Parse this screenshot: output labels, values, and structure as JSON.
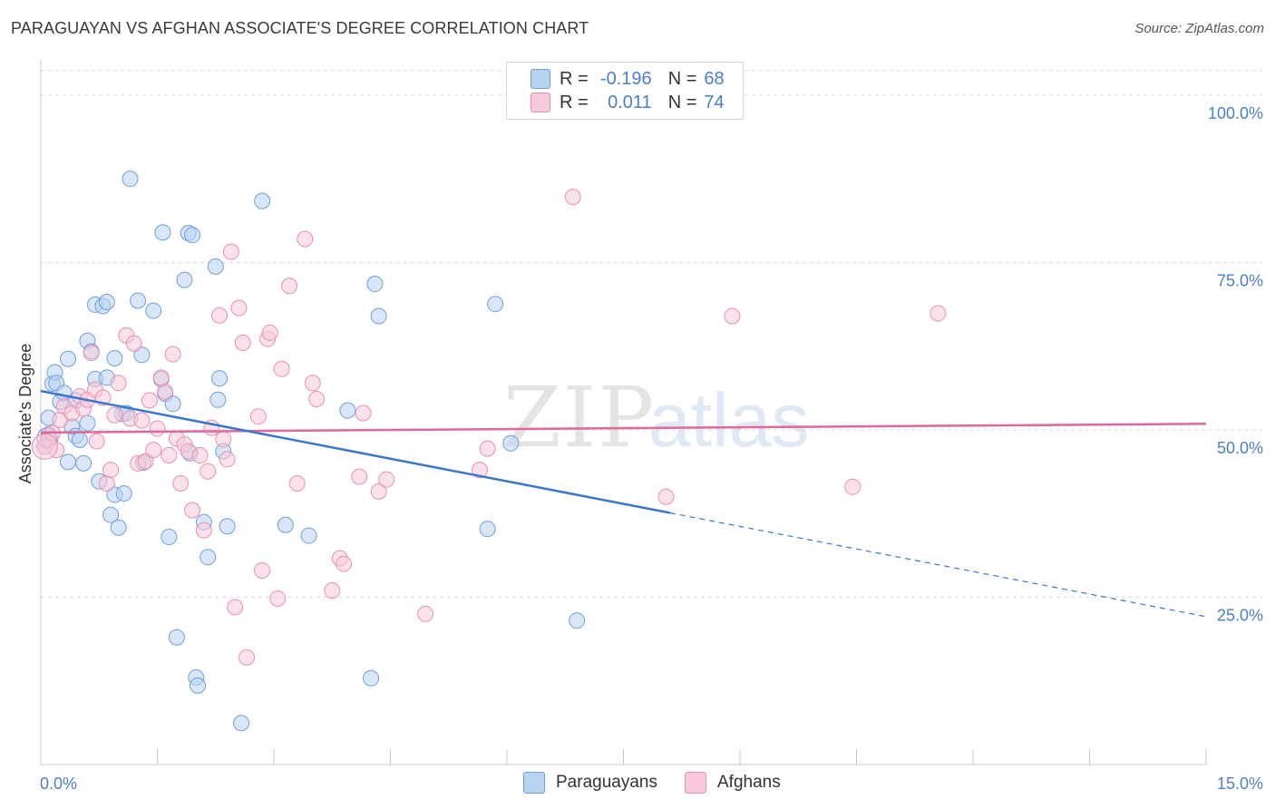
{
  "title": "PARAGUAYAN VS AFGHAN ASSOCIATE'S DEGREE CORRELATION CHART",
  "source": "Source: ZipAtlas.com",
  "watermark": {
    "zip": "ZIP",
    "atlas": "atlas"
  },
  "legend": {
    "rows": [
      {
        "r_label": "R =",
        "r_value": "-0.196",
        "n_label": "N =",
        "n_value": "68",
        "fill": "#b8d2f2",
        "stroke": "#6f9fdc"
      },
      {
        "r_label": "R =",
        "r_value": "0.011",
        "n_label": "N =",
        "n_value": "74",
        "fill": "#f8c9d8",
        "stroke": "#e890ae"
      }
    ]
  },
  "bottom_legend": [
    {
      "label": "Paraguayans",
      "fill": "#b8d2f2",
      "stroke": "#6f9fdc"
    },
    {
      "label": "Afghans",
      "fill": "#f8c9d8",
      "stroke": "#e890ae"
    }
  ],
  "chart_data": {
    "type": "scatter",
    "title": "PARAGUAYAN VS AFGHAN ASSOCIATE'S DEGREE CORRELATION CHART",
    "xlabel": "",
    "ylabel": "Associate's Degree",
    "xlim": [
      0,
      15
    ],
    "ylim": [
      0,
      105
    ],
    "x_tick_labels": [
      {
        "value": 0,
        "label": "0.0%"
      },
      {
        "value": 15,
        "label": "15.0%"
      }
    ],
    "x_minor_ticks": [
      1.5,
      3.0,
      4.5,
      6.0,
      7.5,
      9.0,
      10.5,
      12.0,
      13.5,
      15.0
    ],
    "y_ticks": [
      {
        "value": 100,
        "label": "100.0%"
      },
      {
        "value": 75,
        "label": "75.0%"
      },
      {
        "value": 50,
        "label": "50.0%"
      },
      {
        "value": 25,
        "label": "25.0%"
      }
    ],
    "grid": "horizontal-dashed",
    "legend_position": "top-center",
    "series": [
      {
        "name": "Paraguayans",
        "color": "#6f9fdc",
        "fill": "#b8d2f2",
        "R": -0.196,
        "N": 68,
        "points": [
          [
            0.05,
            47.5
          ],
          [
            0.1,
            49.3
          ],
          [
            0.1,
            51.8
          ],
          [
            0.15,
            56.9
          ],
          [
            0.18,
            58.6
          ],
          [
            0.2,
            57.0
          ],
          [
            0.25,
            54.2
          ],
          [
            0.3,
            55.5
          ],
          [
            0.35,
            60.6
          ],
          [
            0.35,
            45.2
          ],
          [
            0.4,
            50.5
          ],
          [
            0.45,
            49.1
          ],
          [
            0.45,
            54.4
          ],
          [
            0.5,
            48.5
          ],
          [
            0.55,
            45.0
          ],
          [
            0.6,
            51.0
          ],
          [
            0.6,
            63.3
          ],
          [
            0.65,
            61.7
          ],
          [
            0.7,
            68.7
          ],
          [
            0.7,
            57.6
          ],
          [
            0.75,
            42.3
          ],
          [
            0.8,
            68.5
          ],
          [
            0.85,
            69.1
          ],
          [
            0.85,
            57.8
          ],
          [
            0.9,
            37.3
          ],
          [
            0.95,
            40.3
          ],
          [
            0.95,
            60.7
          ],
          [
            1.0,
            35.4
          ],
          [
            1.05,
            52.4
          ],
          [
            1.07,
            40.5
          ],
          [
            1.1,
            52.5
          ],
          [
            1.15,
            87.5
          ],
          [
            1.25,
            69.3
          ],
          [
            1.3,
            61.2
          ],
          [
            1.32,
            45.1
          ],
          [
            1.45,
            67.8
          ],
          [
            1.55,
            57.6
          ],
          [
            1.57,
            79.5
          ],
          [
            1.6,
            55.4
          ],
          [
            1.65,
            34.0
          ],
          [
            1.7,
            53.9
          ],
          [
            1.75,
            19.0
          ],
          [
            1.85,
            72.4
          ],
          [
            1.9,
            79.4
          ],
          [
            1.92,
            46.5
          ],
          [
            1.95,
            79.1
          ],
          [
            2.0,
            13.0
          ],
          [
            2.02,
            11.8
          ],
          [
            2.1,
            36.2
          ],
          [
            2.15,
            31.0
          ],
          [
            2.25,
            74.4
          ],
          [
            2.28,
            54.5
          ],
          [
            2.3,
            57.7
          ],
          [
            2.35,
            46.8
          ],
          [
            2.4,
            35.6
          ],
          [
            2.58,
            6.2
          ],
          [
            2.85,
            84.2
          ],
          [
            3.15,
            35.8
          ],
          [
            3.45,
            34.2
          ],
          [
            3.95,
            52.9
          ],
          [
            4.25,
            12.9
          ],
          [
            4.3,
            71.8
          ],
          [
            4.35,
            67.0
          ],
          [
            5.75,
            35.2
          ],
          [
            5.85,
            68.8
          ],
          [
            6.05,
            48.0
          ],
          [
            6.9,
            21.5
          ],
          [
            0.12,
            48.6
          ]
        ]
      },
      {
        "name": "Afghans",
        "color": "#e890ae",
        "fill": "#f8c9d8",
        "R": 0.011,
        "N": 74,
        "points": [
          [
            0.05,
            47.5
          ],
          [
            0.1,
            48.5
          ],
          [
            0.15,
            49.5
          ],
          [
            0.2,
            47.0
          ],
          [
            0.25,
            51.5
          ],
          [
            0.3,
            53.5
          ],
          [
            0.4,
            52.5
          ],
          [
            0.5,
            55.0
          ],
          [
            0.55,
            53.2
          ],
          [
            0.6,
            54.5
          ],
          [
            0.65,
            61.5
          ],
          [
            0.7,
            56.0
          ],
          [
            0.72,
            48.3
          ],
          [
            0.8,
            54.8
          ],
          [
            0.85,
            42.0
          ],
          [
            0.9,
            44.0
          ],
          [
            0.95,
            52.2
          ],
          [
            1.0,
            57.0
          ],
          [
            1.1,
            64.1
          ],
          [
            1.15,
            51.7
          ],
          [
            1.2,
            62.9
          ],
          [
            1.25,
            45.0
          ],
          [
            1.3,
            51.4
          ],
          [
            1.35,
            45.3
          ],
          [
            1.4,
            54.4
          ],
          [
            1.45,
            47.0
          ],
          [
            1.5,
            50.2
          ],
          [
            1.55,
            57.8
          ],
          [
            1.6,
            55.7
          ],
          [
            1.65,
            46.2
          ],
          [
            1.7,
            61.3
          ],
          [
            1.75,
            48.7
          ],
          [
            1.8,
            42.0
          ],
          [
            1.85,
            47.8
          ],
          [
            1.9,
            46.8
          ],
          [
            1.95,
            38.0
          ],
          [
            2.05,
            46.2
          ],
          [
            2.1,
            35.0
          ],
          [
            2.15,
            43.8
          ],
          [
            2.2,
            50.3
          ],
          [
            2.3,
            67.1
          ],
          [
            2.35,
            48.6
          ],
          [
            2.4,
            45.6
          ],
          [
            2.45,
            76.6
          ],
          [
            2.5,
            23.5
          ],
          [
            2.55,
            68.2
          ],
          [
            2.6,
            63.0
          ],
          [
            2.65,
            16.0
          ],
          [
            2.8,
            52.0
          ],
          [
            2.85,
            29.0
          ],
          [
            2.92,
            63.6
          ],
          [
            2.95,
            64.5
          ],
          [
            3.05,
            24.8
          ],
          [
            3.1,
            59.1
          ],
          [
            3.2,
            71.5
          ],
          [
            3.3,
            42.0
          ],
          [
            3.4,
            78.5
          ],
          [
            3.5,
            57.0
          ],
          [
            3.55,
            54.6
          ],
          [
            3.75,
            26.0
          ],
          [
            3.85,
            30.8
          ],
          [
            3.9,
            30.0
          ],
          [
            4.1,
            43.0
          ],
          [
            4.15,
            52.5
          ],
          [
            4.35,
            40.8
          ],
          [
            4.45,
            42.6
          ],
          [
            4.95,
            22.5
          ],
          [
            5.65,
            44.0
          ],
          [
            5.75,
            47.2
          ],
          [
            6.85,
            84.8
          ],
          [
            8.05,
            40.0
          ],
          [
            8.9,
            67.0
          ],
          [
            10.45,
            41.5
          ],
          [
            11.55,
            67.4
          ]
        ]
      }
    ],
    "trend_lines": [
      {
        "series": "Paraguayans",
        "x": [
          0,
          8.1
        ],
        "y": [
          55.8,
          37.6
        ],
        "dashed_extension": {
          "x": [
            8.1,
            15
          ],
          "y": [
            37.6,
            22.1
          ]
        }
      },
      {
        "series": "Afghans",
        "x": [
          0,
          15
        ],
        "y": [
          49.6,
          50.9
        ]
      }
    ]
  }
}
